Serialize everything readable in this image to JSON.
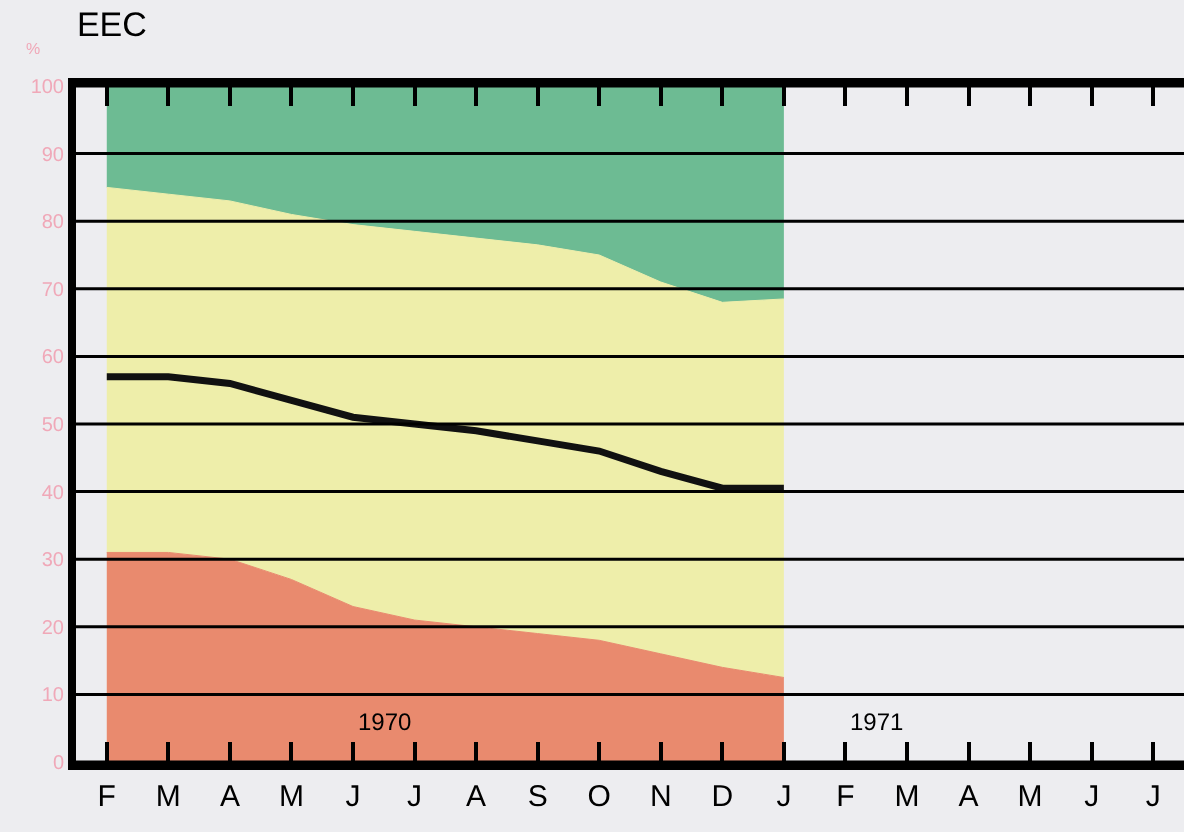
{
  "chart_data": {
    "type": "area",
    "title": "EEC",
    "ylabel": "%",
    "stacked": true,
    "grid": "y",
    "categories": [
      "F",
      "M",
      "A",
      "M",
      "J",
      "J",
      "A",
      "S",
      "O",
      "N",
      "D",
      "J",
      "F",
      "M",
      "A",
      "M",
      "J",
      "J"
    ],
    "series": [
      {
        "color": "#e98a6e",
        "values": [
          31,
          31,
          30,
          27,
          23,
          21,
          20,
          19,
          18,
          16,
          14,
          12.5,
          null,
          null,
          null,
          null,
          null,
          null
        ]
      },
      {
        "color": "#eeeeaa",
        "values": [
          54,
          53,
          53,
          54,
          56.5,
          57.5,
          57.5,
          57.5,
          57,
          55,
          54,
          56,
          null,
          null,
          null,
          null,
          null,
          null
        ]
      },
      {
        "color": "#6dbb93",
        "values": [
          15,
          16,
          17,
          19,
          20.5,
          21.5,
          22.5,
          23.5,
          25,
          29,
          32,
          31.5,
          null,
          null,
          null,
          null,
          null,
          null
        ]
      },
      {
        "type": "line",
        "color": "#111111",
        "values": [
          57,
          57,
          56,
          53.5,
          51,
          50,
          49,
          47.5,
          46,
          43,
          40.5,
          40.5,
          null,
          null,
          null,
          null,
          null,
          null
        ]
      }
    ],
    "ylim": [
      0,
      100
    ],
    "yticks": [
      0,
      10,
      20,
      30,
      40,
      50,
      60,
      70,
      80,
      90,
      100
    ],
    "annotations": [
      "1970",
      "1971"
    ]
  }
}
